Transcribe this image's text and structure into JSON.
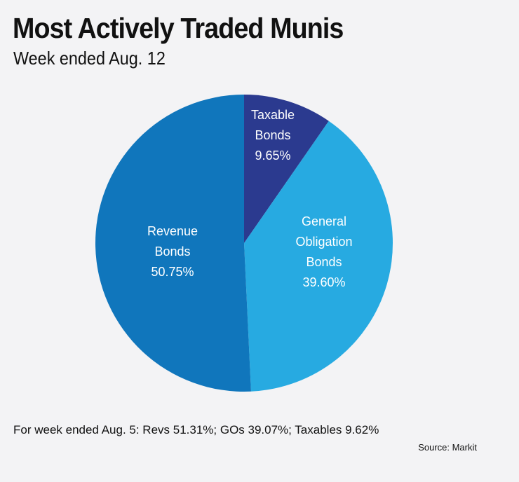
{
  "chart_data": {
    "type": "pie",
    "title": "Most Actively Traded Munis",
    "subtitle": "Week ended Aug. 12",
    "slices": [
      {
        "label": [
          "Taxable",
          "Bonds"
        ],
        "value": 9.65,
        "value_label": "9.65%",
        "color": "#2b3a8f"
      },
      {
        "label": [
          "General",
          "Obligation",
          "Bonds"
        ],
        "value": 39.6,
        "value_label": "39.60%",
        "color": "#27aae1"
      },
      {
        "label": [
          "Revenue",
          "Bonds"
        ],
        "value": 50.75,
        "value_label": "50.75%",
        "color": "#1076bc"
      }
    ],
    "start_angle": "12 o'clock",
    "direction": "clockwise"
  },
  "footnote": "For week ended Aug. 5: Revs 51.31%; GOs 39.07%; Taxables 9.62%",
  "source": "Source: Markit"
}
